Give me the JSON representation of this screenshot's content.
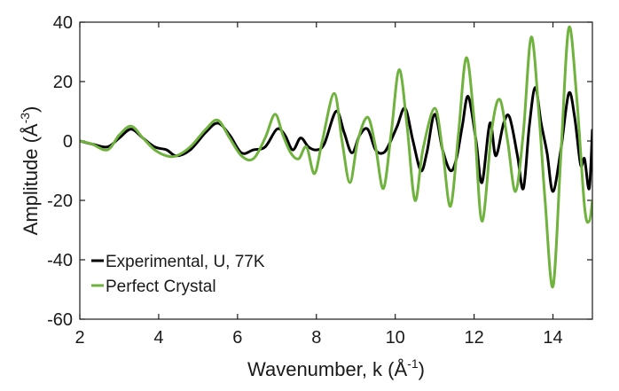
{
  "chart_data": {
    "type": "line",
    "title": "",
    "xlabel": "Wavenumber, k (Å",
    "xlabel_sup": "-1",
    "xlabel_close": ")",
    "ylabel": "Amplitude (Å",
    "ylabel_sup": "-3",
    "ylabel_close": ")",
    "xlim": [
      2,
      15
    ],
    "ylim": [
      -60,
      40
    ],
    "xticks": [
      2,
      4,
      6,
      8,
      10,
      12,
      14
    ],
    "yticks": [
      -60,
      -40,
      -20,
      0,
      20,
      40
    ],
    "grid": false,
    "legend_position": "bottom-left",
    "series": [
      {
        "name": "Experimental, U, 77K",
        "color": "#000000",
        "x": [
          2.0,
          2.3,
          2.7,
          3.0,
          3.3,
          3.6,
          3.9,
          4.2,
          4.45,
          4.8,
          5.2,
          5.5,
          5.8,
          6.1,
          6.4,
          6.7,
          7.0,
          7.2,
          7.4,
          7.6,
          7.8,
          8.0,
          8.2,
          8.5,
          8.7,
          8.9,
          9.1,
          9.3,
          9.5,
          9.7,
          9.85,
          10.05,
          10.25,
          10.45,
          10.65,
          10.8,
          11.0,
          11.2,
          11.4,
          11.55,
          11.7,
          11.85,
          12.05,
          12.2,
          12.4,
          12.55,
          12.75,
          12.9,
          13.1,
          13.25,
          13.4,
          13.55,
          13.7,
          13.85,
          14.0,
          14.2,
          14.4,
          14.55,
          14.7,
          14.8,
          14.92,
          15.0
        ],
        "values": [
          0,
          -1,
          -2,
          1,
          4,
          1,
          -2,
          -3,
          -5,
          -3,
          3,
          6,
          2,
          -4,
          -3,
          -2,
          4,
          2,
          -3,
          1,
          -2,
          -3,
          -1,
          10,
          3,
          -4,
          2,
          4,
          -3,
          -4,
          -1,
          5,
          11,
          0,
          -10,
          -4,
          9,
          -3,
          -10,
          -6,
          5,
          15,
          0,
          -14,
          6,
          -5,
          6,
          8,
          -5,
          -16,
          5,
          18,
          6,
          -4,
          -17,
          -3,
          16,
          8,
          -8,
          -6,
          -16,
          4
        ]
      },
      {
        "name": "Perfect Crystal",
        "color": "#6fb23e",
        "x": [
          2.0,
          2.3,
          2.7,
          3.0,
          3.3,
          3.6,
          3.9,
          4.2,
          4.45,
          4.8,
          5.2,
          5.5,
          5.8,
          6.1,
          6.4,
          6.7,
          6.95,
          7.15,
          7.35,
          7.55,
          7.75,
          7.95,
          8.15,
          8.45,
          8.65,
          8.85,
          9.05,
          9.3,
          9.5,
          9.7,
          9.9,
          10.1,
          10.3,
          10.5,
          10.7,
          11.0,
          11.2,
          11.4,
          11.6,
          11.8,
          12.0,
          12.2,
          12.45,
          12.65,
          12.85,
          13.05,
          13.25,
          13.45,
          13.65,
          13.8,
          14.0,
          14.2,
          14.4,
          14.6,
          14.8,
          14.92,
          15.0
        ],
        "values": [
          0,
          -1,
          -3,
          2,
          5,
          1,
          -3,
          -5,
          -5,
          -2,
          4,
          7,
          1,
          -5,
          -6,
          1,
          9,
          2,
          -4,
          -6,
          -2,
          -11,
          0,
          16,
          0,
          -14,
          0,
          8,
          -2,
          -16,
          3,
          24,
          5,
          -20,
          -3,
          11,
          -3,
          -22,
          2,
          28,
          7,
          -27,
          4,
          14,
          0,
          -17,
          3,
          35,
          8,
          -20,
          -49,
          -5,
          38,
          15,
          -22,
          -27,
          -20
        ]
      }
    ]
  }
}
